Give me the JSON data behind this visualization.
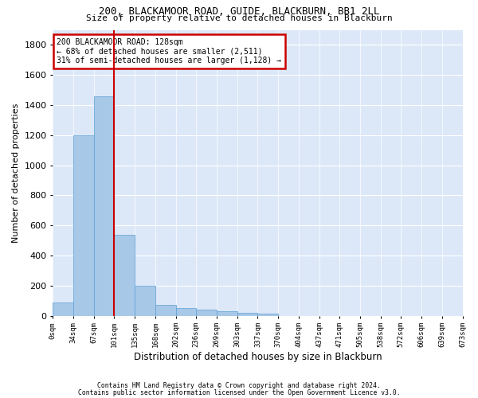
{
  "title1": "200, BLACKAMOOR ROAD, GUIDE, BLACKBURN, BB1 2LL",
  "title2": "Size of property relative to detached houses in Blackburn",
  "xlabel": "Distribution of detached houses by size in Blackburn",
  "ylabel": "Number of detached properties",
  "bar_values": [
    90,
    1200,
    1460,
    540,
    200,
    70,
    48,
    42,
    28,
    20,
    15,
    0,
    0,
    0,
    0,
    0,
    0,
    0,
    0,
    0
  ],
  "bar_labels": [
    "0sqm",
    "34sqm",
    "67sqm",
    "101sqm",
    "135sqm",
    "168sqm",
    "202sqm",
    "236sqm",
    "269sqm",
    "303sqm",
    "337sqm",
    "370sqm",
    "404sqm",
    "437sqm",
    "471sqm",
    "505sqm",
    "538sqm",
    "572sqm",
    "606sqm",
    "639sqm",
    "673sqm"
  ],
  "bar_color": "#a8c8e8",
  "bar_edge_color": "#5a9fd4",
  "vline_color": "#cc0000",
  "annotation_title": "200 BLACKAMOOR ROAD: 128sqm",
  "annotation_line1": "← 68% of detached houses are smaller (2,511)",
  "annotation_line2": "31% of semi-detached houses are larger (1,128) →",
  "annotation_box_color": "#cc0000",
  "ylim": [
    0,
    1900
  ],
  "yticks": [
    0,
    200,
    400,
    600,
    800,
    1000,
    1200,
    1400,
    1600,
    1800
  ],
  "footnote1": "Contains HM Land Registry data © Crown copyright and database right 2024.",
  "footnote2": "Contains public sector information licensed under the Open Government Licence v3.0.",
  "background_color": "#dce8f8"
}
